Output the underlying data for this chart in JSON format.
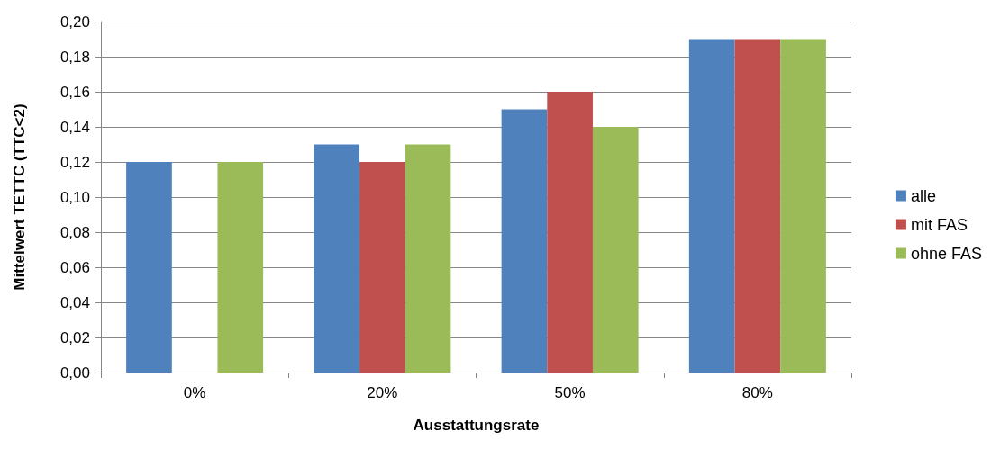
{
  "chart_data": {
    "type": "bar",
    "xlabel": "Ausstattungsrate",
    "ylabel": "Mittelwert TETTC (TTC<2)",
    "categories": [
      "0%",
      "20%",
      "50%",
      "80%"
    ],
    "series": [
      {
        "name": "alle",
        "color": "#4f81bd",
        "values": [
          0.12,
          0.13,
          0.15,
          0.19
        ]
      },
      {
        "name": "mit FAS",
        "color": "#c0504d",
        "values": [
          null,
          0.12,
          0.16,
          0.19
        ]
      },
      {
        "name": "ohne FAS",
        "color": "#9bbb59",
        "values": [
          0.12,
          0.13,
          0.14,
          0.19
        ]
      }
    ],
    "ylim": [
      0,
      0.2
    ],
    "yticks": [
      {
        "value": 0,
        "label": "0,00"
      },
      {
        "value": 0.02,
        "label": "0,02"
      },
      {
        "value": 0.04,
        "label": "0,04"
      },
      {
        "value": 0.06,
        "label": "0,06"
      },
      {
        "value": 0.08,
        "label": "0,08"
      },
      {
        "value": 0.1,
        "label": "0,10"
      },
      {
        "value": 0.12,
        "label": "0,12"
      },
      {
        "value": 0.14,
        "label": "0,14"
      },
      {
        "value": 0.16,
        "label": "0,16"
      },
      {
        "value": 0.18,
        "label": "0,18"
      },
      {
        "value": 0.2,
        "label": "0,20"
      }
    ],
    "grid": "y",
    "legend": "right"
  }
}
